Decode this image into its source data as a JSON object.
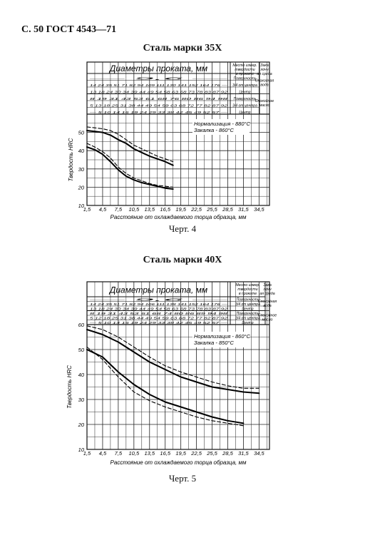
{
  "page_header": "С. 50 ГОСТ 4543—71",
  "charts": [
    {
      "title": "Сталь марки 35Х",
      "caption": "Черт. 4",
      "table_title": "Диаметры проката, мм",
      "col_location": "Место измер. твердости в прокате",
      "col_medium": "Закалочная среда",
      "row_values": [
        "— 9,6 —",
        "14 24 35 51 71 82 94 109 111 130 141 152 164 176 —",
        "13 18 24 30 34 39 44 49 54 58 63 68 73 78 83 87 92",
        "8 19 31 43 53 61 68 76 80 86 94 98",
        "5 13 18 25 31 38 44 49 54 59 63 68 72 77 82 87 92",
        "— 5 10 14 16 19 24 29 33 38 42 45 49 52 57 —"
      ],
      "row_locations": [
        "Поверхность",
        "3/4 от центра",
        "Центр",
        "Поверхность",
        "3/4 от центра",
        "Центр"
      ],
      "row_media": [
        "Спокойная вода",
        "Спокойное масло"
      ],
      "legend": [
        "Нормализация - 880°C",
        "Закалка - 860°C"
      ],
      "chart_data": {
        "type": "line",
        "ylabel": "Твердость HRC",
        "xlabel": "Расстояние от охлаждаемого торца образца, мм",
        "xlim": [
          1.5,
          36.5
        ],
        "ylim": [
          10,
          60
        ],
        "x_ticks": [
          "1,5",
          "4,5",
          "7,5",
          "10,5",
          "13,5",
          "16,5",
          "19,5",
          "22,5",
          "25,5",
          "28,5",
          "31,5",
          "34,5"
        ],
        "y_ticks": [
          "10",
          "20",
          "30",
          "40",
          "50"
        ],
        "series": [
          {
            "style": "solid",
            "x": [
              1.5,
              3,
              4.5,
              6,
              7.5,
              9,
              10.5,
              12,
              13.5,
              15,
              16.5,
              18
            ],
            "y": [
              51,
              50.5,
              50,
              48.5,
              46,
              44,
              41,
              39,
              37,
              35.5,
              34,
              32
            ]
          },
          {
            "style": "dashed",
            "x": [
              1.5,
              3,
              4.5,
              6,
              7.5,
              9,
              10.5,
              12,
              13.5,
              15,
              16.5,
              18
            ],
            "y": [
              53,
              52.5,
              52,
              51,
              49,
              46,
              43,
              41,
              39,
              37,
              35.5,
              34
            ]
          },
          {
            "style": "solid",
            "x": [
              1.5,
              3,
              4.5,
              6,
              7.5,
              9,
              10.5,
              12,
              13.5,
              15,
              16.5,
              18
            ],
            "y": [
              42,
              40.5,
              38,
              34,
              29.5,
              26,
              24,
              22.5,
              21.5,
              20.5,
              19.5,
              19
            ]
          },
          {
            "style": "dashed",
            "x": [
              1.5,
              3,
              4.5,
              6,
              7.5,
              9,
              10.5,
              12,
              13.5,
              15,
              16.5,
              18
            ],
            "y": [
              44,
              42,
              39.5,
              36,
              31,
              27.5,
              25,
              23.5,
              22,
              21,
              20.5,
              20
            ]
          }
        ]
      }
    },
    {
      "title": "Сталь марки 40Х",
      "caption": "Черт. 5",
      "table_title": "Диаметры проката, мм",
      "col_location": "Место измер. твердости в прокате",
      "col_medium": "Закалочная среда",
      "row_values": [
        "— 9,6 —",
        "14 24 35 51 71 82 94 106 111 138 141 152 164 176 —",
        "13 18 24 30 34 39 44 49 54 58 63 68 73 78 83 87 92",
        "8 19 31 43 53 61 68 74 80 86 89 94 98",
        "5 12 18 25 31 38 44 49 54 59 63 68 72 77 82 87 92",
        "— 5 10 14 16 19 24 29 33 38 42 45 49 52 57 —"
      ],
      "row_locations": [
        "Поверхность",
        "3/4 от центра",
        "Центр",
        "Поверхность",
        "3/4 от центра",
        "Центр"
      ],
      "row_media": [
        "Спокойная вода",
        "Спокойное масло"
      ],
      "legend": [
        "Нормализация - 860°C",
        "Закалка - 850°C"
      ],
      "chart_data": {
        "type": "line",
        "ylabel": "Твердость HRC",
        "xlabel": "Расстояние от охлаждаемого торца образца, мм",
        "xlim": [
          1.5,
          36.5
        ],
        "ylim": [
          10,
          60
        ],
        "x_ticks": [
          "1,5",
          "4,5",
          "7,5",
          "10,5",
          "13,5",
          "16,5",
          "19,5",
          "22,5",
          "25,5",
          "28,5",
          "31,5",
          "34,5"
        ],
        "y_ticks": [
          "10",
          "20",
          "30",
          "40",
          "50",
          "60"
        ],
        "series": [
          {
            "style": "solid",
            "x": [
              1.5,
              4.5,
              7.5,
              10.5,
              13.5,
              16.5,
              19.5,
              22.5,
              25.5,
              28.5,
              31.5,
              34.5
            ],
            "y": [
              58,
              56,
              53,
              49,
              45,
              42,
              39,
              37,
              35,
              34,
              33,
              32.5
            ]
          },
          {
            "style": "dashed",
            "x": [
              1.5,
              4.5,
              7.5,
              10.5,
              13.5,
              16.5,
              19.5,
              22.5,
              25.5,
              28.5,
              31.5,
              34.5
            ],
            "y": [
              59.5,
              58,
              55,
              51,
              47,
              43.5,
              41,
              39,
              37,
              35.5,
              34.5,
              34.5
            ]
          },
          {
            "style": "solid",
            "x": [
              1.5,
              4.5,
              7.5,
              10.5,
              13.5,
              16.5,
              19.5,
              22.5,
              25.5,
              28.5,
              31.5
            ],
            "y": [
              50,
              47,
              41,
              36,
              32,
              29,
              27,
              25,
              23,
              21.5,
              20.5
            ]
          },
          {
            "style": "dashed",
            "x": [
              1.5,
              4.5,
              7.5,
              10.5,
              13.5,
              16.5,
              19.5,
              22.5,
              25.5,
              28.5,
              31.5
            ],
            "y": [
              51,
              46,
              39,
              33,
              29.5,
              27,
              25,
              23,
              21.5,
              20.5,
              19.5
            ]
          }
        ]
      }
    }
  ]
}
